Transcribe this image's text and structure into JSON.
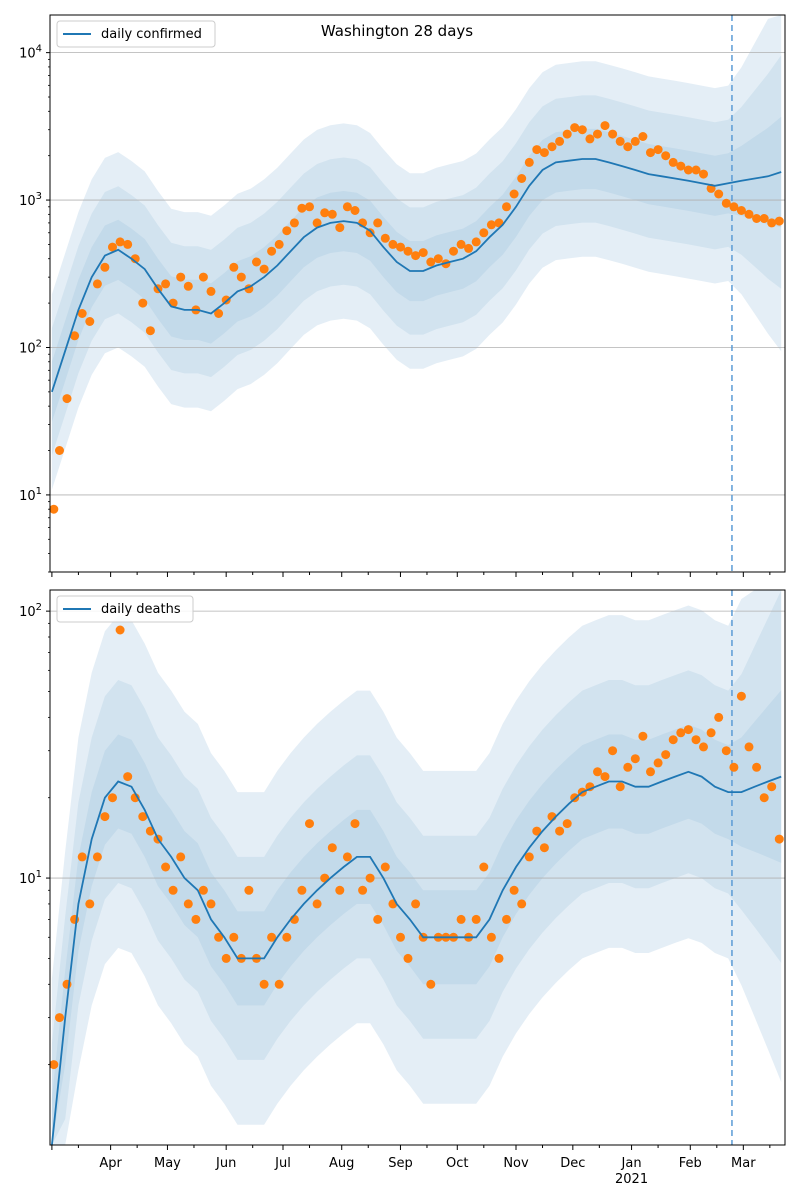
{
  "chart_data": [
    {
      "type": "line",
      "title": "Washington 28 days",
      "yscale": "log",
      "ylim": [
        3,
        18000
      ],
      "ytick_values": [
        10,
        100,
        1000,
        10000
      ],
      "ytick_labels": [
        "10^1",
        "10^2",
        "10^3",
        "10^4"
      ],
      "grid": "horizontal",
      "legend_position": "top-left",
      "forecast_marker_date": "2021-02-23",
      "colors": {
        "line": "#1f77b4",
        "points": "#ff7f0e",
        "band": "#1f77b4",
        "marker": "#5b9bd5"
      },
      "series": [
        {
          "name": "daily confirmed",
          "kind": "line",
          "x": [
            "2020-03-01",
            "2020-03-08",
            "2020-03-15",
            "2020-03-22",
            "2020-03-29",
            "2020-04-05",
            "2020-04-12",
            "2020-04-19",
            "2020-04-26",
            "2020-05-03",
            "2020-05-10",
            "2020-05-17",
            "2020-05-24",
            "2020-05-31",
            "2020-06-07",
            "2020-06-14",
            "2020-06-21",
            "2020-06-28",
            "2020-07-05",
            "2020-07-12",
            "2020-07-19",
            "2020-07-26",
            "2020-08-02",
            "2020-08-09",
            "2020-08-16",
            "2020-08-23",
            "2020-08-30",
            "2020-09-06",
            "2020-09-13",
            "2020-09-20",
            "2020-09-27",
            "2020-10-04",
            "2020-10-11",
            "2020-10-18",
            "2020-10-25",
            "2020-11-01",
            "2020-11-08",
            "2020-11-15",
            "2020-11-22",
            "2020-11-29",
            "2020-12-06",
            "2020-12-13",
            "2020-12-20",
            "2020-12-27",
            "2021-01-03",
            "2021-01-10",
            "2021-01-17",
            "2021-01-24",
            "2021-01-31",
            "2021-02-07",
            "2021-02-14",
            "2021-02-21",
            "2021-02-28",
            "2021-03-07",
            "2021-03-14",
            "2021-03-21"
          ],
          "y": [
            50,
            95,
            180,
            300,
            420,
            460,
            400,
            340,
            250,
            190,
            180,
            180,
            170,
            200,
            240,
            260,
            300,
            360,
            450,
            560,
            650,
            700,
            720,
            700,
            620,
            480,
            380,
            330,
            330,
            360,
            380,
            400,
            450,
            560,
            680,
            900,
            1250,
            1600,
            1800,
            1850,
            1900,
            1900,
            1800,
            1700,
            1600,
            1500,
            1450,
            1400,
            1350,
            1300,
            1250,
            1300,
            1350,
            1400,
            1450,
            1550
          ]
        },
        {
          "name": "",
          "kind": "points",
          "x": [
            "2020-03-02",
            "2020-03-05",
            "2020-03-09",
            "2020-03-13",
            "2020-03-17",
            "2020-03-21",
            "2020-03-25",
            "2020-03-29",
            "2020-04-02",
            "2020-04-06",
            "2020-04-10",
            "2020-04-14",
            "2020-04-18",
            "2020-04-22",
            "2020-04-26",
            "2020-04-30",
            "2020-05-04",
            "2020-05-08",
            "2020-05-12",
            "2020-05-16",
            "2020-05-20",
            "2020-05-24",
            "2020-05-28",
            "2020-06-01",
            "2020-06-05",
            "2020-06-09",
            "2020-06-13",
            "2020-06-17",
            "2020-06-21",
            "2020-06-25",
            "2020-06-29",
            "2020-07-03",
            "2020-07-07",
            "2020-07-11",
            "2020-07-15",
            "2020-07-19",
            "2020-07-23",
            "2020-07-27",
            "2020-07-31",
            "2020-08-04",
            "2020-08-08",
            "2020-08-12",
            "2020-08-16",
            "2020-08-20",
            "2020-08-24",
            "2020-08-28",
            "2020-09-01",
            "2020-09-05",
            "2020-09-09",
            "2020-09-13",
            "2020-09-17",
            "2020-09-21",
            "2020-09-25",
            "2020-09-29",
            "2020-10-03",
            "2020-10-07",
            "2020-10-11",
            "2020-10-15",
            "2020-10-19",
            "2020-10-23",
            "2020-10-27",
            "2020-10-31",
            "2020-11-04",
            "2020-11-08",
            "2020-11-12",
            "2020-11-16",
            "2020-11-20",
            "2020-11-24",
            "2020-11-28",
            "2020-12-02",
            "2020-12-06",
            "2020-12-10",
            "2020-12-14",
            "2020-12-18",
            "2020-12-22",
            "2020-12-26",
            "2020-12-30",
            "2021-01-03",
            "2021-01-07",
            "2021-01-11",
            "2021-01-15",
            "2021-01-19",
            "2021-01-23",
            "2021-01-27",
            "2021-01-31",
            "2021-02-04",
            "2021-02-08",
            "2021-02-12",
            "2021-02-16",
            "2021-02-20",
            "2021-02-24",
            "2021-02-28",
            "2021-03-04",
            "2021-03-08",
            "2021-03-12",
            "2021-03-16",
            "2021-03-20"
          ],
          "y": [
            8,
            20,
            45,
            120,
            170,
            150,
            270,
            350,
            480,
            520,
            500,
            400,
            200,
            130,
            250,
            270,
            200,
            300,
            260,
            180,
            300,
            240,
            170,
            210,
            350,
            300,
            250,
            380,
            340,
            450,
            500,
            620,
            700,
            880,
            900,
            700,
            820,
            800,
            650,
            900,
            850,
            700,
            600,
            700,
            550,
            500,
            480,
            450,
            420,
            440,
            380,
            400,
            370,
            450,
            500,
            470,
            520,
            600,
            680,
            700,
            900,
            1100,
            1400,
            1800,
            2200,
            2100,
            2300,
            2500,
            2800,
            3100,
            3000,
            2600,
            2800,
            3200,
            2800,
            2500,
            2300,
            2500,
            2700,
            2100,
            2200,
            2000,
            1800,
            1700,
            1600,
            1600,
            1500,
            1200,
            1100,
            950,
            900,
            850,
            800,
            750,
            750,
            700,
            720
          ]
        }
      ]
    },
    {
      "type": "line",
      "title": "",
      "yscale": "log",
      "ylim": [
        1,
        120
      ],
      "ytick_values": [
        10,
        100
      ],
      "ytick_labels": [
        "10^1",
        "10^2"
      ],
      "grid": "horizontal",
      "legend_position": "top-left",
      "forecast_marker_date": "2021-02-23",
      "x_month_labels": [
        "Apr",
        "May",
        "Jun",
        "Jul",
        "Aug",
        "Sep",
        "Oct",
        "Nov",
        "Dec",
        "Jan",
        "Feb",
        "Mar"
      ],
      "x_year_label": "2021",
      "colors": {
        "line": "#1f77b4",
        "points": "#ff7f0e",
        "band": "#1f77b4",
        "marker": "#5b9bd5"
      },
      "series": [
        {
          "name": "daily deaths",
          "kind": "line",
          "x": [
            "2020-03-01",
            "2020-03-08",
            "2020-03-15",
            "2020-03-22",
            "2020-03-29",
            "2020-04-05",
            "2020-04-12",
            "2020-04-19",
            "2020-04-26",
            "2020-05-03",
            "2020-05-10",
            "2020-05-17",
            "2020-05-24",
            "2020-05-31",
            "2020-06-07",
            "2020-06-14",
            "2020-06-21",
            "2020-06-28",
            "2020-07-05",
            "2020-07-12",
            "2020-07-19",
            "2020-07-26",
            "2020-08-02",
            "2020-08-09",
            "2020-08-16",
            "2020-08-23",
            "2020-08-30",
            "2020-09-06",
            "2020-09-13",
            "2020-09-20",
            "2020-09-27",
            "2020-10-04",
            "2020-10-11",
            "2020-10-18",
            "2020-10-25",
            "2020-11-01",
            "2020-11-08",
            "2020-11-15",
            "2020-11-22",
            "2020-11-29",
            "2020-12-06",
            "2020-12-13",
            "2020-12-20",
            "2020-12-27",
            "2021-01-03",
            "2021-01-10",
            "2021-01-17",
            "2021-01-24",
            "2021-01-31",
            "2021-02-07",
            "2021-02-14",
            "2021-02-21",
            "2021-02-28",
            "2021-03-07",
            "2021-03-14",
            "2021-03-21"
          ],
          "y": [
            1,
            3,
            8,
            14,
            20,
            23,
            22,
            18,
            14,
            12,
            10,
            9,
            7,
            6,
            5,
            5,
            5,
            6,
            7,
            8,
            9,
            10,
            11,
            12,
            12,
            10,
            8,
            7,
            6,
            6,
            6,
            6,
            6,
            7,
            9,
            11,
            13,
            15,
            17,
            19,
            21,
            22,
            23,
            23,
            22,
            22,
            23,
            24,
            25,
            24,
            22,
            21,
            21,
            22,
            23,
            24
          ]
        },
        {
          "name": "",
          "kind": "points",
          "x": [
            "2020-03-02",
            "2020-03-05",
            "2020-03-09",
            "2020-03-13",
            "2020-03-17",
            "2020-03-21",
            "2020-03-25",
            "2020-03-29",
            "2020-04-02",
            "2020-04-06",
            "2020-04-10",
            "2020-04-14",
            "2020-04-18",
            "2020-04-22",
            "2020-04-26",
            "2020-04-30",
            "2020-05-04",
            "2020-05-08",
            "2020-05-12",
            "2020-05-16",
            "2020-05-20",
            "2020-05-24",
            "2020-05-28",
            "2020-06-01",
            "2020-06-05",
            "2020-06-09",
            "2020-06-13",
            "2020-06-17",
            "2020-06-21",
            "2020-06-25",
            "2020-06-29",
            "2020-07-03",
            "2020-07-07",
            "2020-07-11",
            "2020-07-15",
            "2020-07-19",
            "2020-07-23",
            "2020-07-27",
            "2020-07-31",
            "2020-08-04",
            "2020-08-08",
            "2020-08-12",
            "2020-08-16",
            "2020-08-20",
            "2020-08-24",
            "2020-08-28",
            "2020-09-01",
            "2020-09-05",
            "2020-09-09",
            "2020-09-13",
            "2020-09-17",
            "2020-09-21",
            "2020-09-25",
            "2020-09-29",
            "2020-10-03",
            "2020-10-07",
            "2020-10-11",
            "2020-10-15",
            "2020-10-19",
            "2020-10-23",
            "2020-10-27",
            "2020-10-31",
            "2020-11-04",
            "2020-11-08",
            "2020-11-12",
            "2020-11-16",
            "2020-11-20",
            "2020-11-24",
            "2020-11-28",
            "2020-12-02",
            "2020-12-06",
            "2020-12-10",
            "2020-12-14",
            "2020-12-18",
            "2020-12-22",
            "2020-12-26",
            "2020-12-30",
            "2021-01-03",
            "2021-01-07",
            "2021-01-11",
            "2021-01-15",
            "2021-01-19",
            "2021-01-23",
            "2021-01-27",
            "2021-01-31",
            "2021-02-04",
            "2021-02-08",
            "2021-02-12",
            "2021-02-16",
            "2021-02-20",
            "2021-02-24",
            "2021-02-28",
            "2021-03-04",
            "2021-03-08",
            "2021-03-12",
            "2021-03-16",
            "2021-03-20"
          ],
          "y": [
            2,
            3,
            4,
            7,
            12,
            8,
            12,
            17,
            20,
            85,
            24,
            20,
            17,
            15,
            14,
            11,
            9,
            12,
            8,
            7,
            9,
            8,
            6,
            5,
            6,
            5,
            9,
            5,
            4,
            6,
            4,
            6,
            7,
            9,
            16,
            8,
            10,
            13,
            9,
            12,
            16,
            9,
            10,
            7,
            11,
            8,
            6,
            5,
            8,
            6,
            4,
            6,
            6,
            6,
            7,
            6,
            7,
            11,
            6,
            5,
            7,
            9,
            8,
            12,
            15,
            13,
            17,
            15,
            16,
            20,
            21,
            22,
            25,
            24,
            30,
            22,
            26,
            28,
            34,
            25,
            27,
            29,
            33,
            35,
            36,
            33,
            31,
            35,
            40,
            30,
            26,
            48,
            31,
            26,
            20,
            22,
            14
          ]
        }
      ]
    }
  ]
}
